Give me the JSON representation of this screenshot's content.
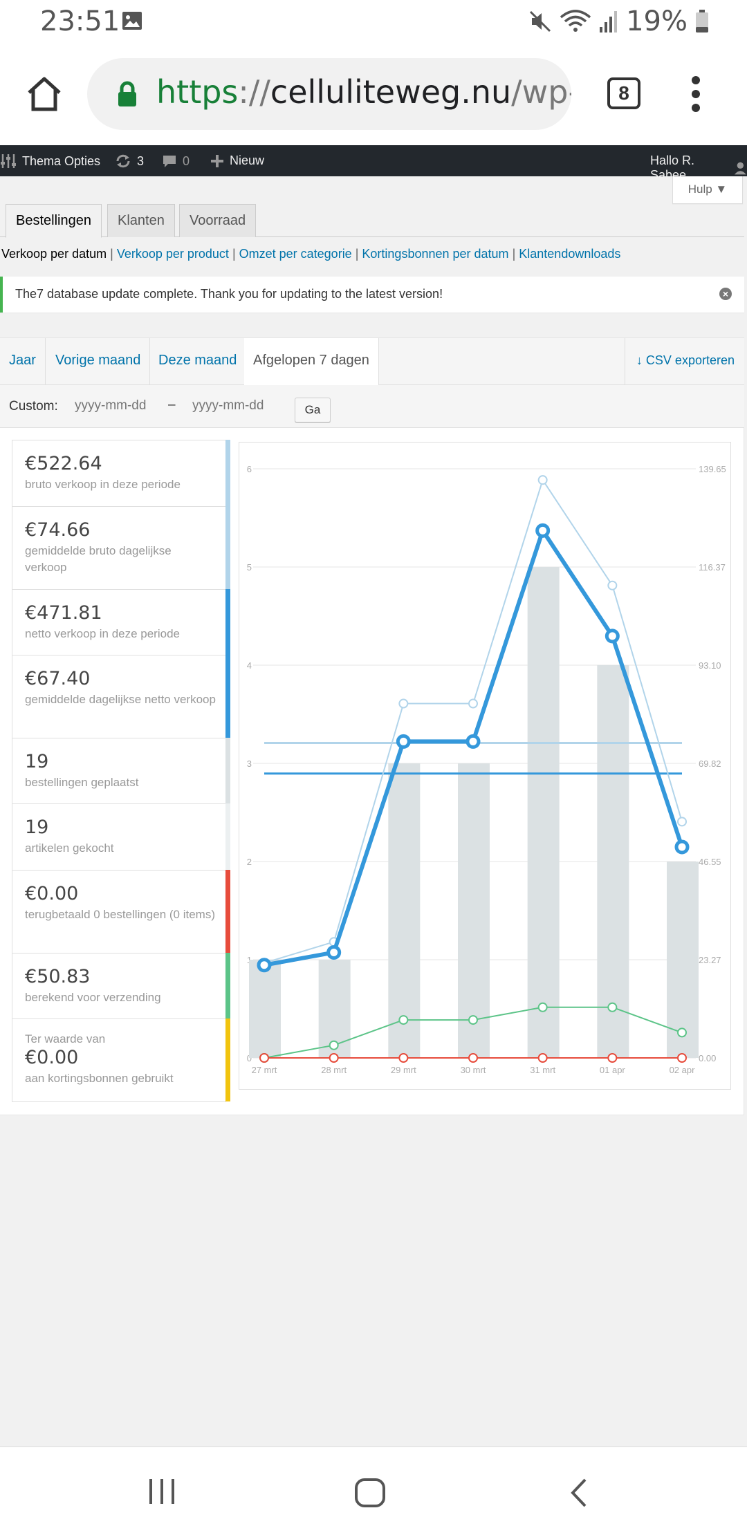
{
  "status_bar": {
    "time": "23:51",
    "battery": "19%"
  },
  "browser": {
    "url_scheme": "https",
    "url_sep": "://",
    "url_host": "celluliteweg.nu",
    "url_path": "/wp-a",
    "tab_count": "8"
  },
  "admin_bar": {
    "theme_options": "Thema Opties",
    "updates": "3",
    "comments": "0",
    "new": "Nieuw",
    "greeting": "Hallo R. Sabee"
  },
  "help": "Hulp ▼",
  "tabs": [
    {
      "label": "Bestellingen"
    },
    {
      "label": "Klanten"
    },
    {
      "label": "Voorraad"
    }
  ],
  "subnav": {
    "current": "Verkoop per datum",
    "links": [
      "Verkoop per product",
      "Omzet per categorie",
      "Kortingsbonnen per datum",
      "Klantendownloads"
    ]
  },
  "notice": "The7 database update complete. Thank you for updating to the latest version!",
  "ranges": [
    {
      "label": "Jaar"
    },
    {
      "label": "Vorige maand"
    },
    {
      "label": "Deze maand"
    },
    {
      "label": "Afgelopen 7 dagen"
    }
  ],
  "csv_export": "CSV exporteren",
  "custom": {
    "label": "Custom:",
    "from_placeholder": "yyyy-mm-dd",
    "dash": "–",
    "to_placeholder": "yyyy-mm-dd",
    "go": "Ga"
  },
  "legend": [
    {
      "value": "€522.64",
      "desc": "bruto verkoop in deze periode",
      "color": "#b1d4ea"
    },
    {
      "value": "€74.66",
      "desc": "gemiddelde bruto dagelijkse verkoop",
      "color": "#b1d4ea"
    },
    {
      "value": "€471.81",
      "desc": "netto verkoop in deze periode",
      "color": "#3498db"
    },
    {
      "value": "€67.40",
      "desc": "gemiddelde dagelijkse netto verkoop",
      "color": "#3498db"
    },
    {
      "value": "19",
      "desc": "bestellingen geplaatst",
      "color": "#dbe1e3"
    },
    {
      "value": "19",
      "desc": "artikelen gekocht",
      "color": "#ecf0f1"
    },
    {
      "value": "€0.00",
      "desc": "terugbetaald 0 bestellingen (0 items)",
      "color": "#e74c3c"
    },
    {
      "value": "€50.83",
      "desc": "berekend voor verzending",
      "color": "#5cc488"
    },
    {
      "pre": "Ter waarde van",
      "value": "€0.00",
      "desc": "aan kortingsbonnen gebruikt",
      "color": "#f1c40f"
    }
  ],
  "chart_data": {
    "type": "bar",
    "categories": [
      "27 mrt",
      "28 mrt",
      "29 mrt",
      "30 mrt",
      "31 mrt",
      "01 apr",
      "02 apr"
    ],
    "ylim_left": [
      0,
      6
    ],
    "yticks_left": [
      "0",
      "1",
      "2",
      "3",
      "4",
      "5",
      "6"
    ],
    "ylim_right": [
      0,
      139.65
    ],
    "yticks_right": [
      "0.00",
      "23.27",
      "46.55",
      "69.82",
      "93.10",
      "116.37",
      "139.65"
    ],
    "bars": {
      "values": [
        1,
        1,
        3,
        3,
        5,
        4,
        2
      ],
      "color": "#dbe1e3"
    },
    "lines": [
      {
        "values": [
          22.5,
          27.5,
          84.0,
          84.0,
          137.0,
          112.0,
          56.0
        ],
        "color": "#b1d4ea"
      },
      {
        "values": [
          22.0,
          25.0,
          75.0,
          75.0,
          125.0,
          100.0,
          50.0
        ],
        "color": "#3498db"
      },
      {
        "values": [
          0,
          3,
          9,
          9,
          12,
          12,
          6
        ],
        "color": "#5cc488"
      },
      {
        "values": [
          0,
          0,
          0,
          0,
          0,
          0,
          0
        ],
        "color": "#e74c3c"
      }
    ],
    "averages": [
      {
        "value": 74.66,
        "color": "#b1d4ea"
      },
      {
        "value": 67.4,
        "color": "#3498db"
      }
    ]
  }
}
